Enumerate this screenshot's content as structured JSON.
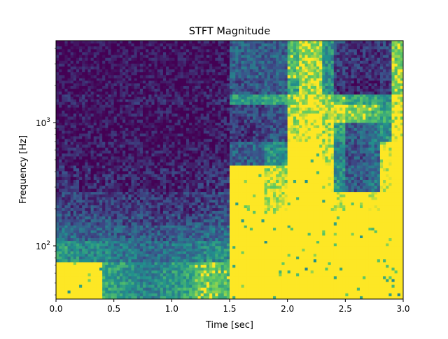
{
  "chart_data": {
    "type": "heatmap",
    "title": "STFT Magnitude",
    "xlabel": "Time [sec]",
    "ylabel": "Frequency [Hz]",
    "xlim": [
      0,
      3.0
    ],
    "ylim": [
      37,
      4625
    ],
    "yscale": "log",
    "colormap": "viridis",
    "grid": false,
    "legend": "none",
    "x_ticks": [
      "0.0",
      "0.5",
      "1.0",
      "1.5",
      "2.0",
      "2.5",
      "3.0"
    ],
    "x_tick_values": [
      0,
      0.5,
      1.0,
      1.5,
      2.0,
      2.5,
      3.0
    ],
    "y_ticks": [
      {
        "value": 100,
        "base": "10",
        "exp": "2"
      },
      {
        "value": 1000,
        "base": "10",
        "exp": "3"
      }
    ],
    "time_bins": [
      0.0,
      0.1,
      0.2,
      0.3,
      0.4,
      0.5,
      0.6,
      0.7,
      0.8,
      0.9,
      1.0,
      1.1,
      1.2,
      1.3,
      1.4,
      1.5,
      1.6,
      1.7,
      1.8,
      1.9,
      2.0,
      2.1,
      2.2,
      2.3,
      2.4,
      2.5,
      2.6,
      2.7,
      2.8,
      2.9,
      3.0
    ],
    "frequency_band_edges": [
      37,
      74,
      110,
      147,
      183,
      275,
      450,
      700,
      1000,
      1400,
      1700,
      2300,
      4625
    ],
    "magnitude_normalized": [
      [
        1,
        0.55,
        0.35,
        0.25,
        0.2,
        0.12,
        0.08,
        0.05,
        0.05,
        0.08,
        0.05,
        0.04
      ],
      [
        1,
        0.5,
        0.35,
        0.25,
        0.2,
        0.12,
        0.08,
        0.05,
        0.05,
        0.08,
        0.05,
        0.04
      ],
      [
        1,
        0.45,
        0.32,
        0.25,
        0.2,
        0.12,
        0.07,
        0.05,
        0.05,
        0.08,
        0.05,
        0.04
      ],
      [
        1,
        0.45,
        0.3,
        0.25,
        0.2,
        0.12,
        0.07,
        0.05,
        0.05,
        0.08,
        0.05,
        0.04
      ],
      [
        0.6,
        0.45,
        0.3,
        0.25,
        0.18,
        0.12,
        0.07,
        0.05,
        0.05,
        0.08,
        0.05,
        0.04
      ],
      [
        0.55,
        0.4,
        0.3,
        0.22,
        0.18,
        0.1,
        0.07,
        0.05,
        0.05,
        0.08,
        0.05,
        0.04
      ],
      [
        0.5,
        0.4,
        0.28,
        0.22,
        0.16,
        0.1,
        0.06,
        0.05,
        0.05,
        0.08,
        0.05,
        0.04
      ],
      [
        0.45,
        0.35,
        0.28,
        0.22,
        0.16,
        0.1,
        0.06,
        0.05,
        0.05,
        0.08,
        0.05,
        0.04
      ],
      [
        0.45,
        0.35,
        0.28,
        0.2,
        0.15,
        0.1,
        0.06,
        0.05,
        0.05,
        0.08,
        0.05,
        0.04
      ],
      [
        0.5,
        0.35,
        0.28,
        0.2,
        0.15,
        0.1,
        0.06,
        0.05,
        0.05,
        0.08,
        0.05,
        0.04
      ],
      [
        0.55,
        0.4,
        0.3,
        0.22,
        0.16,
        0.1,
        0.06,
        0.05,
        0.05,
        0.08,
        0.05,
        0.04
      ],
      [
        0.6,
        0.4,
        0.3,
        0.22,
        0.16,
        0.1,
        0.06,
        0.05,
        0.05,
        0.08,
        0.05,
        0.04
      ],
      [
        0.75,
        0.45,
        0.32,
        0.25,
        0.18,
        0.12,
        0.07,
        0.05,
        0.05,
        0.08,
        0.05,
        0.04
      ],
      [
        0.75,
        0.5,
        0.35,
        0.25,
        0.2,
        0.14,
        0.08,
        0.06,
        0.06,
        0.1,
        0.06,
        0.05
      ],
      [
        0.7,
        0.5,
        0.35,
        0.28,
        0.22,
        0.16,
        0.1,
        0.07,
        0.07,
        0.12,
        0.07,
        0.06
      ],
      [
        1,
        1,
        1,
        1,
        1,
        1,
        0.3,
        0.15,
        0.2,
        0.55,
        0.25,
        0.3
      ],
      [
        1,
        1,
        1,
        1,
        1,
        1,
        0.3,
        0.15,
        0.2,
        0.55,
        0.25,
        0.3
      ],
      [
        1,
        1,
        1,
        1,
        1,
        1,
        0.35,
        0.18,
        0.22,
        0.55,
        0.25,
        0.3
      ],
      [
        1,
        1,
        1,
        1,
        0.9,
        0.85,
        0.5,
        0.25,
        0.25,
        0.6,
        0.3,
        0.3
      ],
      [
        1,
        1,
        1,
        1,
        0.9,
        0.85,
        0.5,
        0.25,
        0.25,
        0.6,
        0.3,
        0.3
      ],
      [
        1,
        1,
        1,
        1,
        1,
        1,
        1,
        0.9,
        0.85,
        0.8,
        0.6,
        0.7
      ],
      [
        1,
        1,
        1,
        1,
        1,
        1,
        1,
        0.95,
        0.9,
        0.9,
        0.85,
        0.85
      ],
      [
        1,
        1,
        1,
        1,
        1,
        1,
        1,
        0.95,
        0.9,
        0.9,
        0.85,
        0.85
      ],
      [
        1,
        1,
        1,
        1,
        1,
        0.95,
        0.9,
        0.85,
        0.85,
        0.8,
        0.5,
        0.5
      ],
      [
        1,
        1,
        1,
        1,
        0.9,
        0.5,
        0.45,
        0.6,
        0.85,
        0.7,
        0.15,
        0.2
      ],
      [
        1,
        1,
        1,
        1,
        1,
        0.3,
        0.25,
        0.3,
        0.8,
        0.6,
        0.1,
        0.15
      ],
      [
        1,
        1,
        1,
        1,
        1,
        0.3,
        0.25,
        0.3,
        0.8,
        0.6,
        0.1,
        0.15
      ],
      [
        1,
        1,
        1,
        1,
        0.95,
        0.4,
        0.35,
        0.4,
        0.7,
        0.6,
        0.1,
        0.15
      ],
      [
        1,
        1,
        1,
        1,
        1,
        0.95,
        0.9,
        0.5,
        0.6,
        0.5,
        0.15,
        0.2
      ],
      [
        1,
        1,
        1,
        1,
        1,
        1,
        1,
        0.95,
        0.9,
        0.85,
        0.8,
        0.8
      ]
    ]
  }
}
